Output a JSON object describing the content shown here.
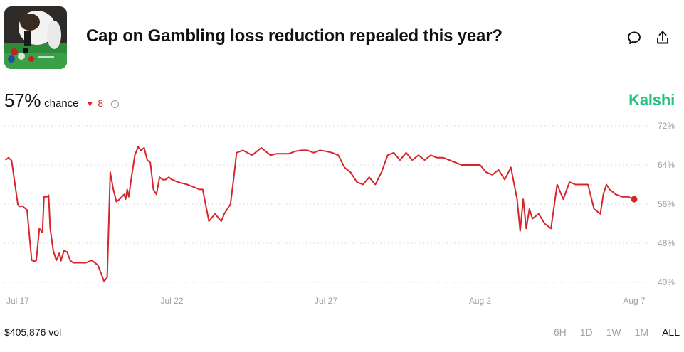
{
  "header": {
    "title": "Cap on Gambling loss reduction repealed this year?",
    "comment_icon": "comment-icon",
    "share_icon": "share-icon",
    "thumbnail": "casino-table-photo"
  },
  "summary": {
    "chance_value": "57%",
    "chance_label": "chance",
    "delta_value": "8",
    "delta_direction": "down",
    "delta_color": "#d6262c",
    "info_icon": "info-icon",
    "brand": "Kalshi",
    "brand_color": "#28c07f"
  },
  "footer": {
    "volume": "$405,876 vol",
    "ranges": [
      "6H",
      "1D",
      "1W",
      "1M",
      "ALL"
    ],
    "active_range": "ALL"
  },
  "chart_data": {
    "type": "line",
    "title": "",
    "xlabel": "",
    "ylabel": "",
    "ylim": [
      40,
      72
    ],
    "y_ticks": [
      40,
      48,
      56,
      64,
      72
    ],
    "y_tick_labels": [
      "40%",
      "48%",
      "56%",
      "64%",
      "72%"
    ],
    "x_ticks": [
      "Jul 17",
      "Jul 22",
      "Jul 27",
      "Aug 2",
      "Aug 7"
    ],
    "x_tick_positions_days": [
      0,
      5,
      10,
      15,
      20
    ],
    "grid": true,
    "line_color": "#d6262c",
    "series": [
      {
        "x_days": [
          -0.4,
          -0.3,
          -0.2,
          0.0,
          0.05,
          0.15,
          0.3,
          0.45,
          0.55,
          0.6,
          0.7,
          0.8,
          0.85,
          0.95,
          1.0,
          1.05,
          1.15,
          1.25,
          1.35,
          1.4,
          1.5,
          1.6,
          1.7,
          1.8,
          1.9,
          2.0,
          2.2,
          2.4,
          2.6,
          2.8,
          2.9,
          3.0,
          3.1,
          3.2,
          3.3,
          3.45,
          3.5,
          3.55,
          3.6,
          3.7,
          3.8,
          3.9,
          4.0,
          4.1,
          4.2,
          4.3,
          4.4,
          4.5,
          4.6,
          4.7,
          4.8,
          4.9,
          5.0,
          5.2,
          5.5,
          5.7,
          5.9,
          6.0,
          6.2,
          6.4,
          6.6,
          6.7,
          6.9,
          7.0,
          7.1,
          7.3,
          7.6,
          7.9,
          8.1,
          8.2,
          8.4,
          8.6,
          8.8,
          9.0,
          9.2,
          9.4,
          9.6,
          9.8,
          10.0,
          10.2,
          10.4,
          10.6,
          10.8,
          11.0,
          11.2,
          11.4,
          11.6,
          11.8,
          12.0,
          12.2,
          12.4,
          12.6,
          12.8,
          13.0,
          13.2,
          13.4,
          13.6,
          13.8,
          14.0,
          14.2,
          14.4,
          14.6,
          14.8,
          15.0,
          15.2,
          15.4,
          15.6,
          15.8,
          16.0,
          16.2,
          16.3,
          16.4,
          16.5,
          16.6,
          16.7,
          16.9,
          17.1,
          17.3,
          17.5,
          17.7,
          17.9,
          18.1,
          18.3,
          18.5,
          18.7,
          18.9,
          19.0,
          19.1,
          19.2,
          19.4,
          19.6,
          19.8,
          20.0
        ],
        "values": [
          65.0,
          65.5,
          64.9,
          56.0,
          55.5,
          55.6,
          54.8,
          44.5,
          44.3,
          44.5,
          51.0,
          50.2,
          57.5,
          57.5,
          57.8,
          51.0,
          46.5,
          44.5,
          46.0,
          44.4,
          46.5,
          46.2,
          44.5,
          44.0,
          44.0,
          44.0,
          44.0,
          44.5,
          43.5,
          40.2,
          41.0,
          62.5,
          59.0,
          56.5,
          57.0,
          58.0,
          57.0,
          59.0,
          57.5,
          62.0,
          66.0,
          67.7,
          67.0,
          67.5,
          65.0,
          64.5,
          59.0,
          58.0,
          61.5,
          61.0,
          61.0,
          61.5,
          61.0,
          60.5,
          60.0,
          59.5,
          59.0,
          59.0,
          52.5,
          54.0,
          52.5,
          54.0,
          56.0,
          61.0,
          66.5,
          67.0,
          66.0,
          67.5,
          66.5,
          66.0,
          66.3,
          66.3,
          66.3,
          66.8,
          67.0,
          67.0,
          66.5,
          67.0,
          66.8,
          66.5,
          66.0,
          63.5,
          62.5,
          60.5,
          60.0,
          61.5,
          60.0,
          62.5,
          66.0,
          66.5,
          65.0,
          66.5,
          65.0,
          66.0,
          65.0,
          66.0,
          65.5,
          65.5,
          65.0,
          64.5,
          64.0,
          64.0,
          64.0,
          64.0,
          62.5,
          62.0,
          63.0,
          61.0,
          63.5,
          57.0,
          50.5,
          57.0,
          51.0,
          55.0,
          53.0,
          54.0,
          52.0,
          51.0,
          60.0,
          57.0,
          60.5,
          60.0,
          60.0,
          60.0,
          55.0,
          54.0,
          58.0,
          60.0,
          59.0,
          58.0,
          57.5,
          57.5,
          57.0
        ]
      }
    ],
    "end_marker": true
  }
}
